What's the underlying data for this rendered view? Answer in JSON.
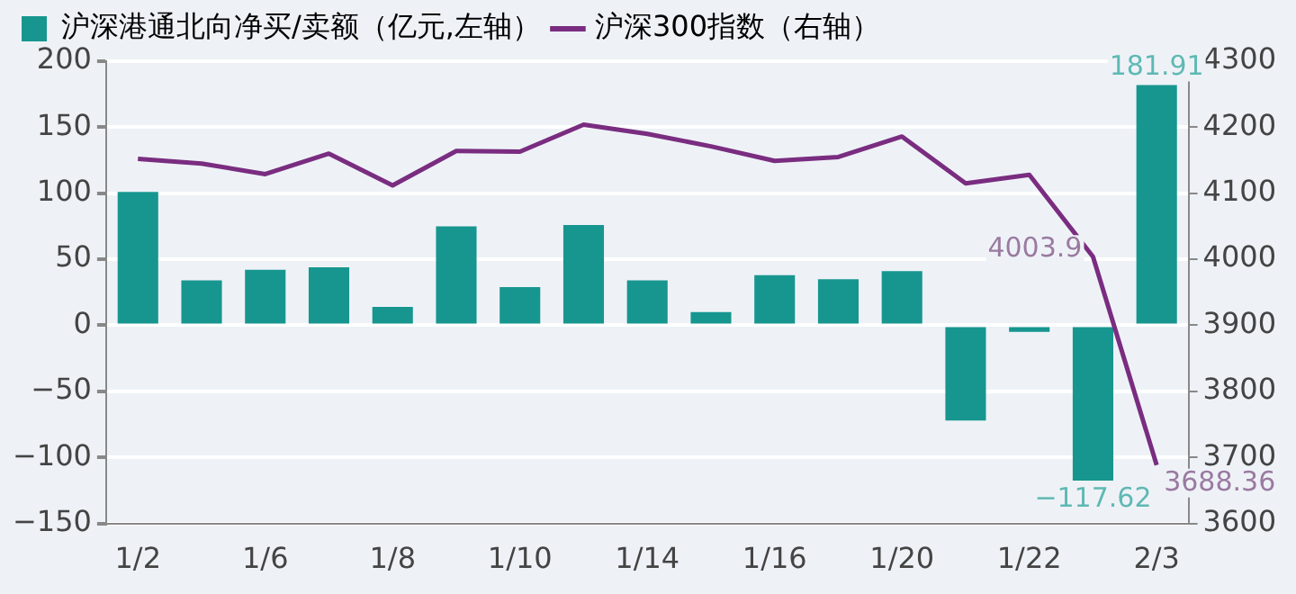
{
  "chart_data": {
    "type": "bar",
    "categories": [
      "1/2",
      null,
      "1/6",
      null,
      "1/8",
      null,
      "1/10",
      null,
      "1/14",
      null,
      "1/16",
      null,
      "1/20",
      null,
      "1/22",
      null,
      "2/3"
    ],
    "series": [
      {
        "name": "沪深港通北向净买/卖额（亿元,左轴）",
        "color": "#17968f",
        "values": [
          101,
          34,
          42,
          44,
          14,
          75,
          29,
          76,
          34,
          10,
          38,
          35,
          41,
          -72,
          -5,
          -117.62,
          181.91
        ],
        "value_labels": [
          null,
          null,
          null,
          null,
          null,
          null,
          null,
          null,
          null,
          null,
          null,
          null,
          null,
          null,
          null,
          "−117.62",
          "181.91"
        ]
      },
      {
        "name": "沪深300指数（右轴）",
        "type": "line",
        "axis": "y2",
        "color": "#7a2d80",
        "values": [
          4152,
          4145,
          4129,
          4160,
          4112,
          4164,
          4163,
          4204,
          4190,
          4171,
          4149,
          4155,
          4186,
          4115,
          4128,
          4003.9,
          3688.36
        ],
        "value_labels": [
          null,
          null,
          null,
          null,
          null,
          null,
          null,
          null,
          null,
          null,
          null,
          null,
          null,
          null,
          null,
          "4003.9",
          "3688.36"
        ]
      }
    ],
    "ylim": [
      -150,
      200
    ],
    "yticks": [
      -150,
      -100,
      -50,
      0,
      50,
      100,
      150,
      200
    ],
    "y2lim": [
      3600,
      4300
    ],
    "y2ticks": [
      3600,
      3700,
      3800,
      3900,
      4000,
      4100,
      4200,
      4300
    ],
    "grid": "y",
    "legend": "top left",
    "marker": "none"
  }
}
